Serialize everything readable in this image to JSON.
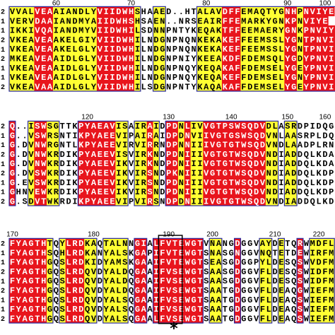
{
  "blocks": [
    {
      "ruler": [
        60,
        70,
        80,
        90,
        100
      ],
      "column_shading": "YYYYRRRYYYYYYYRRRRRRY..YY.....YYYYRRRYYYYYYYRRYRRRRRR",
      "rows": [
        {
          "label": "2",
          "sequence": "VVALVEAAIANDLYVIIDWHSHAAED..HTALAVDFFEMAQTYGNHPNVIYE"
        },
        {
          "label": "1",
          "sequence": "VERVDAAIANDMYAIIDWHSHSAEN..NRSEAIRFFEMARKYGNKPNVIYE"
        },
        {
          "label": "1",
          "sequence": "IKKIVQAIANDMYVIIDWHILSDNNPNTYKEQAKTFFEEMAERYGNKPNVIYE"
        },
        {
          "label": "2",
          "sequence": "VKEAVEAAKELGIYVIIDWHILNDGNPNQNKEKAKEFFEEMSSLYGNTPNVIYE"
        },
        {
          "label": "1",
          "sequence": "VKEAVEAAKELGLYVIIDWHILNDGNPNQNKEKAKEFFEEMSSLYGNTPNVIYE"
        },
        {
          "label": "2",
          "sequence": "MKEAVEAAIDLGLYVIIDWHILNDGNPNIYKEEAKDFFDEMSQLYGDYPNVIYE"
        },
        {
          "label": "1",
          "sequence": "VKEAVEAAIDLGLYVIIDWHILNDGNPNQYKEQAKAFFDEMSELYGEYPNVIYE"
        },
        {
          "label": "1",
          "sequence": "VKEAVEAAIDLGLYVIIDWHILNDGNPNQYKEQAKEFFDEMSELYGNYPNVIYE"
        },
        {
          "label": "2",
          "sequence": "VKEAVAAAIDLGLYVIIDWHILSDGNPNTYKAQAKAFFDEMSELYGEYPNVIYE"
        }
      ]
    },
    {
      "ruler": [
        120,
        130,
        140,
        150,
        160
      ],
      "column_shading": "R..YRRYY...RRRRRRYY.YYRY.RRYRYYRRRRRRRRRRYY.YY......",
      "rows": [
        {
          "label": "2",
          "sequence": "Q..ISWSGTTKPYAEAVISAIRAIDPDNLIVVGTPSWSQDVDLASRDPIDQGA"
        },
        {
          "label": "1",
          "sequence": "G..VSWRSNTIKPYAEEVIPAIRAIDPDNVIIVGTGSWSQDVNLAASRPLDQDN"
        },
        {
          "label": "1",
          "sequence": "G.DVNWRGNTLKPYAEEVIRVIRRNDPNNIIIVGTGTWSQDVNDLAADPLRNDA"
        },
        {
          "label": "2",
          "sequence": "G.DVNWKRDIKPYAEEVISVIRKNDPDNIIIVGTGTWSQDVNDIADDQLKDAN"
        },
        {
          "label": "1",
          "sequence": "G.DVNWKRDIKPYAEEVIKVIRKNDPDNIIIVGTGTWSQDVNDIADDQLKDAN"
        },
        {
          "label": "2",
          "sequence": "G.DVSWKRDIKPYAEEVIKVIRSNDPKNIIIVGTGTWSQDVNDIADDQLKDPN"
        },
        {
          "label": "1",
          "sequence": "G.EVSWKRDIKPYAEEVIKVIRSNDPDNIIIVGTGTWSQDVNDIADDQLKDPN"
        },
        {
          "label": "1",
          "sequence": "GHNVEWKRDIKPYAEEVIKVIRSNDPDNIIIVGTGTWSQDVNDIADDQLKDPN"
        },
        {
          "label": "2",
          "sequence": "G.SDVTWKRDIKPYAEEVIPVIRSNDPDNIIIVGTGTWSQDVNDIADDQLKDPN"
        }
      ]
    },
    {
      "ruler": [
        170,
        180,
        190,
        200,
        210,
        220
      ],
      "column_shading": "RRRRRRY.YRRRYY.YYYY.RR.RRRRRRRR.YY..R...YY.Y..R.YYYY",
      "rows": [
        {
          "label": "2",
          "sequence": "FYAGTHTQYLRDKAQTALNNGIALFVTEWGTVNANGDGGVAYDETQRWMDFLA"
        },
        {
          "label": "1",
          "sequence": "FYAGTHSQHLRDKANYALSKGAPIFVTEWGTSNASGNGGVNQTETDEWIRFMD"
        },
        {
          "label": "1",
          "sequence": "FYAGTHGQSLRDKIDYAMSKGAAIFVTEWGTSEASGDGGPYLDESQSWVDFMN"
        },
        {
          "label": "2",
          "sequence": "FYAGTHGQSLRDQVDYALDQGAAIFVSEWGTSAASGDGGVFLDESQSWIDFMA"
        },
        {
          "label": "1",
          "sequence": "FYAGTHGQSLRDQVDYALDQGAAIFVSEWGTSAASGDGGVFLDESQSWIDFMA"
        },
        {
          "label": "2",
          "sequence": "FYAGTHGQSLRDQVDYALDQGAAIFVSEWGTSAATGDGGVFLDEAQGWIEFMA"
        },
        {
          "label": "1",
          "sequence": "FYAGTHGQSLRDQVDYALSQGAAIFVSEWGTSAATGDGGVFLDEAQSWIEFMA"
        },
        {
          "label": "1",
          "sequence": "FYAGTHGQSLRDQVDYALSQGAAIFVSEWGTSAATGDGGVFLDEAQSWIEFMA"
        },
        {
          "label": "2",
          "sequence": "FYAGTHGQSLRDQVDYALSQGAALFVSEWGTSAATGDGGVFLDEAQSWIEFMA"
        }
      ]
    }
  ],
  "marker": "*"
}
